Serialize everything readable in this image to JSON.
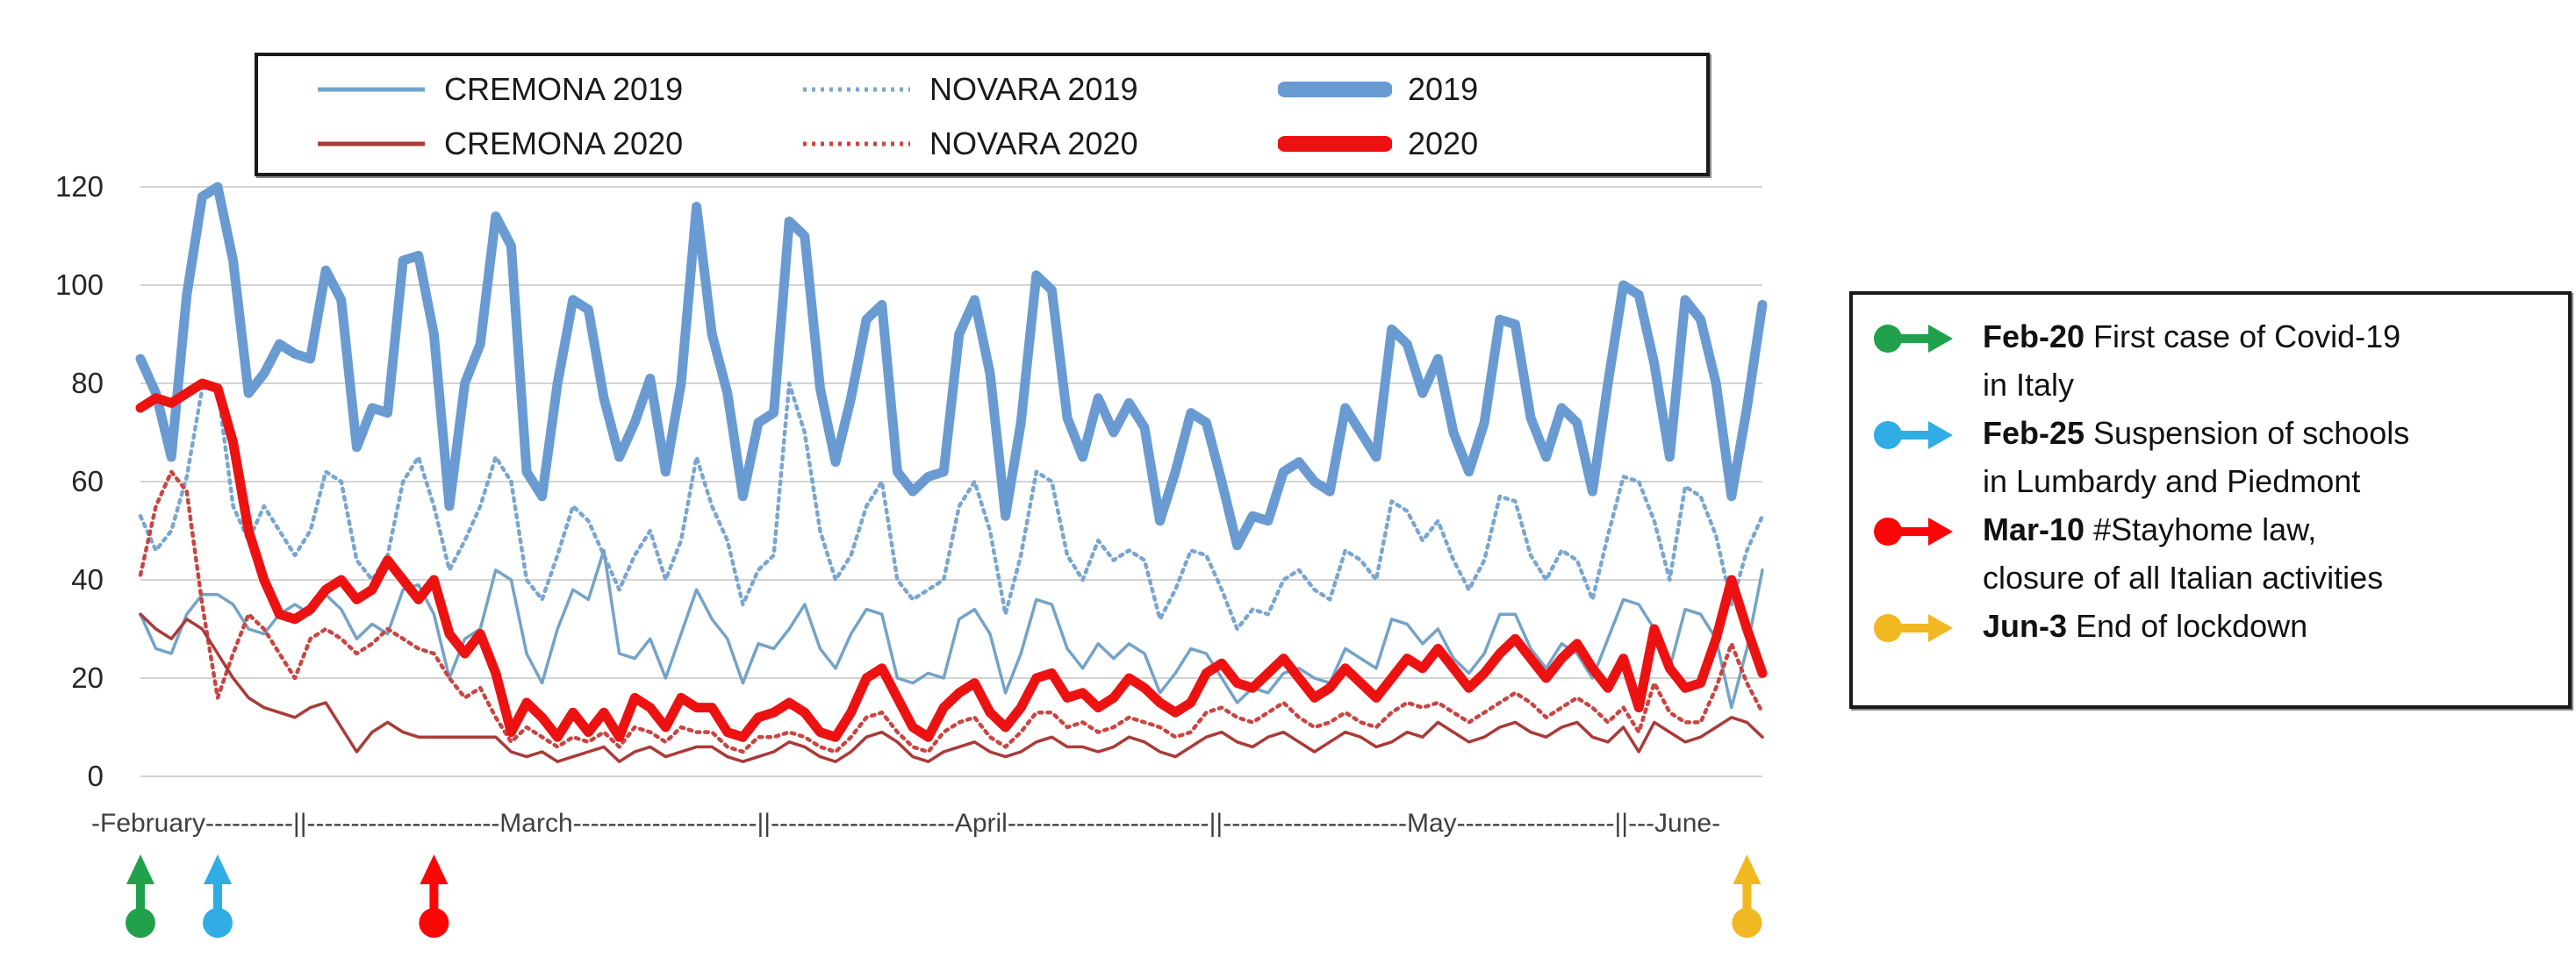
{
  "y_axis": {
    "ticks": [
      0,
      20,
      40,
      60,
      80,
      100,
      120
    ]
  },
  "x_axis": {
    "label_line": "-February----------||----------------------March---------------------||---------------------April-----------------------||---------------------May------------------||---June-",
    "months": [
      "February",
      "March",
      "April",
      "May",
      "June"
    ]
  },
  "legend": {
    "items": [
      {
        "label": "CREMONA 2019",
        "color": "#74a3c7",
        "style": "thin"
      },
      {
        "label": "NOVARA 2019",
        "color": "#7aa6cf",
        "style": "dotted"
      },
      {
        "label": "2019",
        "color": "#699bd2",
        "style": "thick"
      },
      {
        "label": "CREMONA 2020",
        "color": "#a93b38",
        "style": "thin"
      },
      {
        "label": "NOVARA 2020",
        "color": "#c84642",
        "style": "dotted"
      },
      {
        "label": "2020",
        "color": "#ec1212",
        "style": "thick"
      }
    ]
  },
  "annotations": {
    "items": [
      {
        "date": "Feb-20",
        "text": "First case of Covid-19\nin Italy",
        "color": "#21a14c",
        "day_index": 0
      },
      {
        "date": "Feb-25",
        "text": "Suspension of schools\nin Lumbardy and Piedmont",
        "color": "#30ade5",
        "day_index": 5
      },
      {
        "date": "Mar-10",
        "text": "#Stayhome law,\nclosure of all Italian activities",
        "color": "#fb0606",
        "day_index": 19
      },
      {
        "date": "Jun-3",
        "text": "End of lockdown",
        "color": "#f2b822",
        "day_index": 104
      }
    ]
  },
  "chart_data": {
    "type": "line",
    "title": "",
    "xlabel": "",
    "ylabel": "",
    "ylim": [
      0,
      120
    ],
    "grid": "horizontal",
    "legend_position": "top",
    "x": [
      "Feb-20",
      "Feb-21",
      "Feb-22",
      "Feb-23",
      "Feb-24",
      "Feb-25",
      "Feb-26",
      "Feb-27",
      "Feb-28",
      "Feb-29",
      "Mar-1",
      "Mar-2",
      "Mar-3",
      "Mar-4",
      "Mar-5",
      "Mar-6",
      "Mar-7",
      "Mar-8",
      "Mar-9",
      "Mar-10",
      "Mar-11",
      "Mar-12",
      "Mar-13",
      "Mar-14",
      "Mar-15",
      "Mar-16",
      "Mar-17",
      "Mar-18",
      "Mar-19",
      "Mar-20",
      "Mar-21",
      "Mar-22",
      "Mar-23",
      "Mar-24",
      "Mar-25",
      "Mar-26",
      "Mar-27",
      "Mar-28",
      "Mar-29",
      "Mar-30",
      "Mar-31",
      "Apr-1",
      "Apr-2",
      "Apr-3",
      "Apr-4",
      "Apr-5",
      "Apr-6",
      "Apr-7",
      "Apr-8",
      "Apr-9",
      "Apr-10",
      "Apr-11",
      "Apr-12",
      "Apr-13",
      "Apr-14",
      "Apr-15",
      "Apr-16",
      "Apr-17",
      "Apr-18",
      "Apr-19",
      "Apr-20",
      "Apr-21",
      "Apr-22",
      "Apr-23",
      "Apr-24",
      "Apr-25",
      "Apr-26",
      "Apr-27",
      "Apr-28",
      "Apr-29",
      "Apr-30",
      "May-1",
      "May-2",
      "May-3",
      "May-4",
      "May-5",
      "May-6",
      "May-7",
      "May-8",
      "May-9",
      "May-10",
      "May-11",
      "May-12",
      "May-13",
      "May-14",
      "May-15",
      "May-16",
      "May-17",
      "May-18",
      "May-19",
      "May-20",
      "May-21",
      "May-22",
      "May-23",
      "May-24",
      "May-25",
      "May-26",
      "May-27",
      "May-28",
      "May-29",
      "May-30",
      "May-31",
      "Jun-1",
      "Jun-2",
      "Jun-3",
      "Jun-4"
    ],
    "series": [
      {
        "name": "NOVARA 2019",
        "color": "#7aa6cf",
        "style": "dotted",
        "values": [
          53,
          46,
          50,
          61,
          79,
          79,
          55,
          48,
          55,
          50,
          45,
          50,
          62,
          60,
          44,
          40,
          45,
          60,
          65,
          55,
          42,
          48,
          55,
          65,
          60,
          40,
          36,
          45,
          55,
          52,
          45,
          38,
          45,
          50,
          40,
          48,
          65,
          55,
          48,
          35,
          42,
          45,
          80,
          70,
          50,
          40,
          45,
          55,
          60,
          40,
          36,
          38,
          40,
          55,
          60,
          50,
          33,
          45,
          62,
          60,
          45,
          40,
          48,
          44,
          46,
          44,
          32,
          38,
          46,
          45,
          38,
          30,
          34,
          33,
          40,
          42,
          38,
          36,
          46,
          44,
          40,
          56,
          54,
          48,
          52,
          44,
          38,
          44,
          57,
          56,
          45,
          40,
          46,
          44,
          36,
          49,
          61,
          60,
          52,
          40,
          59,
          57,
          49,
          35,
          46,
          53
        ]
      },
      {
        "name": "CREMONA 2019",
        "color": "#74a3c7",
        "style": "thin",
        "values": [
          33,
          26,
          25,
          33,
          37,
          37,
          35,
          30,
          29,
          33,
          35,
          33,
          37,
          34,
          28,
          31,
          29,
          38,
          39,
          33,
          20,
          28,
          30,
          42,
          40,
          25,
          19,
          30,
          38,
          36,
          46,
          25,
          24,
          28,
          20,
          29,
          38,
          32,
          28,
          19,
          27,
          26,
          30,
          35,
          26,
          22,
          29,
          34,
          33,
          20,
          19,
          21,
          20,
          32,
          34,
          29,
          17,
          25,
          36,
          35,
          26,
          22,
          27,
          24,
          27,
          25,
          17,
          21,
          26,
          25,
          20,
          15,
          18,
          17,
          21,
          22,
          20,
          19,
          26,
          24,
          22,
          32,
          31,
          27,
          30,
          24,
          21,
          25,
          33,
          33,
          26,
          22,
          27,
          25,
          20,
          28,
          36,
          35,
          30,
          22,
          34,
          33,
          28,
          14,
          26,
          42
        ]
      },
      {
        "name": "2019",
        "color": "#699bd2",
        "style": "thick",
        "values": [
          85,
          78,
          65,
          98,
          118,
          120,
          105,
          78,
          82,
          88,
          86,
          85,
          103,
          97,
          67,
          75,
          74,
          105,
          106,
          90,
          55,
          80,
          88,
          114,
          108,
          62,
          57,
          80,
          97,
          95,
          77,
          65,
          72,
          81,
          62,
          80,
          116,
          90,
          78,
          57,
          72,
          74,
          113,
          110,
          79,
          64,
          77,
          93,
          96,
          62,
          58,
          61,
          62,
          90,
          97,
          82,
          53,
          72,
          102,
          99,
          73,
          65,
          77,
          70,
          76,
          71,
          52,
          62,
          74,
          72,
          60,
          47,
          53,
          52,
          62,
          64,
          60,
          58,
          75,
          70,
          65,
          91,
          88,
          78,
          85,
          70,
          62,
          72,
          93,
          92,
          73,
          65,
          75,
          72,
          58,
          80,
          100,
          98,
          84,
          65,
          97,
          93,
          80,
          57,
          75,
          96
        ]
      },
      {
        "name": "NOVARA 2020",
        "color": "#c84642",
        "style": "dotted",
        "values": [
          41,
          55,
          62,
          58,
          35,
          16,
          25,
          33,
          30,
          25,
          20,
          28,
          30,
          28,
          25,
          27,
          30,
          28,
          26,
          25,
          20,
          16,
          18,
          12,
          7,
          10,
          8,
          6,
          8,
          7,
          9,
          6,
          10,
          9,
          7,
          10,
          9,
          9,
          6,
          5,
          8,
          8,
          9,
          8,
          6,
          5,
          8,
          12,
          13,
          9,
          6,
          5,
          9,
          11,
          12,
          8,
          6,
          9,
          13,
          13,
          10,
          11,
          9,
          10,
          12,
          11,
          10,
          8,
          9,
          13,
          14,
          12,
          11,
          13,
          15,
          12,
          10,
          11,
          13,
          11,
          10,
          13,
          15,
          14,
          15,
          13,
          11,
          13,
          15,
          17,
          15,
          12,
          14,
          16,
          14,
          11,
          14,
          9,
          19,
          13,
          11,
          11,
          18,
          27,
          19,
          13
        ]
      },
      {
        "name": "CREMONA 2020",
        "color": "#a93b38",
        "style": "thin",
        "values": [
          33,
          30,
          28,
          32,
          30,
          25,
          20,
          16,
          14,
          13,
          12,
          14,
          15,
          10,
          5,
          9,
          11,
          9,
          8,
          8,
          8,
          8,
          8,
          8,
          5,
          4,
          5,
          3,
          4,
          5,
          6,
          3,
          5,
          6,
          4,
          5,
          6,
          6,
          4,
          3,
          4,
          5,
          7,
          6,
          4,
          3,
          5,
          8,
          9,
          7,
          4,
          3,
          5,
          6,
          7,
          5,
          4,
          5,
          7,
          8,
          6,
          6,
          5,
          6,
          8,
          7,
          5,
          4,
          6,
          8,
          9,
          7,
          6,
          8,
          9,
          7,
          5,
          7,
          9,
          8,
          6,
          7,
          9,
          8,
          11,
          9,
          7,
          8,
          10,
          11,
          9,
          8,
          10,
          11,
          8,
          7,
          10,
          5,
          11,
          9,
          7,
          8,
          10,
          12,
          11,
          8
        ]
      },
      {
        "name": "2020",
        "color": "#ec1212",
        "style": "thick",
        "values": [
          75,
          77,
          76,
          78,
          80,
          79,
          68,
          50,
          40,
          33,
          32,
          34,
          38,
          40,
          36,
          38,
          44,
          40,
          36,
          40,
          29,
          25,
          29,
          21,
          9,
          15,
          12,
          8,
          13,
          9,
          13,
          8,
          16,
          14,
          10,
          16,
          14,
          14,
          9,
          8,
          12,
          13,
          15,
          13,
          9,
          8,
          13,
          20,
          22,
          16,
          10,
          8,
          14,
          17,
          19,
          13,
          10,
          14,
          20,
          21,
          16,
          17,
          14,
          16,
          20,
          18,
          15,
          13,
          15,
          21,
          23,
          19,
          18,
          21,
          24,
          20,
          16,
          18,
          22,
          19,
          16,
          20,
          24,
          22,
          26,
          22,
          18,
          21,
          25,
          28,
          24,
          20,
          24,
          27,
          22,
          18,
          24,
          14,
          30,
          22,
          18,
          19,
          28,
          40,
          30,
          21
        ]
      }
    ]
  }
}
